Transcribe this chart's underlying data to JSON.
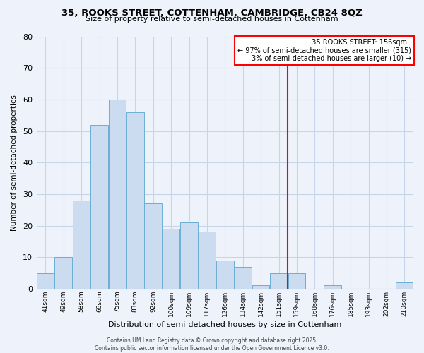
{
  "title": "35, ROOKS STREET, COTTENHAM, CAMBRIDGE, CB24 8QZ",
  "subtitle": "Size of property relative to semi-detached houses in Cottenham",
  "xlabel": "Distribution of semi-detached houses by size in Cottenham",
  "ylabel": "Number of semi-detached properties",
  "bar_labels": [
    "41sqm",
    "49sqm",
    "58sqm",
    "66sqm",
    "75sqm",
    "83sqm",
    "92sqm",
    "100sqm",
    "109sqm",
    "117sqm",
    "126sqm",
    "134sqm",
    "142sqm",
    "151sqm",
    "159sqm",
    "168sqm",
    "176sqm",
    "185sqm",
    "193sqm",
    "202sqm",
    "210sqm"
  ],
  "bar_values": [
    5,
    10,
    28,
    52,
    60,
    56,
    27,
    19,
    21,
    18,
    9,
    7,
    1,
    5,
    5,
    0,
    1,
    0,
    0,
    0,
    2
  ],
  "bar_color": "#ccdcf0",
  "bar_edge_color": "#6baed6",
  "vline_x_index": 13.5,
  "vline_color": "red",
  "ylim": [
    0,
    80
  ],
  "yticks": [
    0,
    10,
    20,
    30,
    40,
    50,
    60,
    70,
    80
  ],
  "legend_title": "35 ROOKS STREET: 156sqm",
  "legend_line1": "← 97% of semi-detached houses are smaller (315)",
  "legend_line2": "3% of semi-detached houses are larger (10) →",
  "legend_box_color": "white",
  "legend_box_edge": "red",
  "footer_line1": "Contains HM Land Registry data © Crown copyright and database right 2025.",
  "footer_line2": "Contains public sector information licensed under the Open Government Licence v3.0.",
  "bg_color": "#eef2fb",
  "grid_color": "#c8d4e8",
  "fig_width": 6.0,
  "fig_height": 5.0,
  "title_fontsize": 9.5,
  "subtitle_fontsize": 8,
  "xlabel_fontsize": 8,
  "ylabel_fontsize": 7.5,
  "xtick_fontsize": 6.5,
  "ytick_fontsize": 8,
  "annotation_fontsize": 7,
  "footer_fontsize": 5.5
}
